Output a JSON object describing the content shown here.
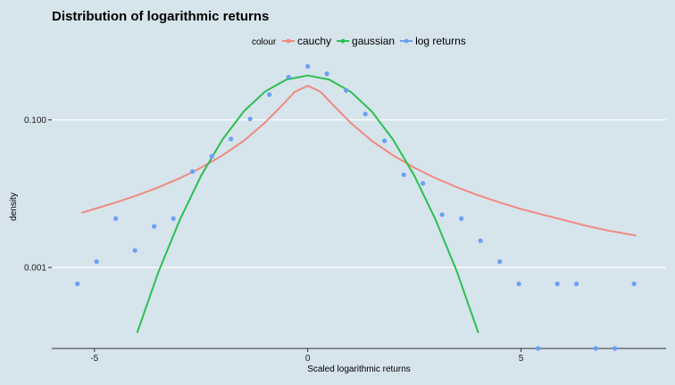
{
  "chart_data": {
    "type": "line",
    "title": "Distribution of logarithmic returns",
    "xlabel": "Scaled logarithmic returns",
    "ylabel": "density",
    "y_scale": "log10",
    "xlim": [
      -6,
      8.4
    ],
    "ylim": [
      8e-05,
      0.75
    ],
    "x_ticks": [
      -5,
      0,
      5
    ],
    "x_tick_labels": [
      "-5",
      "0",
      "5"
    ],
    "y_ticks": [
      0.001,
      0.1
    ],
    "y_tick_labels": [
      "0.001",
      "0.100"
    ],
    "grid": true,
    "legend": {
      "title": "colour",
      "placement": "top",
      "entries": [
        {
          "label": "cauchy",
          "color": "#f08a80"
        },
        {
          "label": "gaussian",
          "color": "#2bbf4f"
        },
        {
          "label": "log returns",
          "color": "#6a9ff5"
        }
      ]
    },
    "series": [
      {
        "name": "cauchy",
        "kind": "line",
        "color": "#f08a80",
        "x": [
          -5.3,
          -5.0,
          -4.5,
          -4.0,
          -3.5,
          -3.0,
          -2.5,
          -2.0,
          -1.5,
          -1.0,
          -0.6,
          -0.3,
          0.0,
          0.3,
          0.6,
          1.0,
          1.5,
          2.0,
          2.5,
          3.0,
          3.5,
          4.0,
          4.5,
          5.0,
          5.5,
          6.0,
          6.5,
          7.0,
          7.7
        ],
        "y": [
          0.0055,
          0.0062,
          0.0076,
          0.0095,
          0.0122,
          0.0162,
          0.0225,
          0.033,
          0.052,
          0.092,
          0.158,
          0.24,
          0.29,
          0.24,
          0.158,
          0.092,
          0.052,
          0.033,
          0.0225,
          0.0162,
          0.0122,
          0.0095,
          0.0076,
          0.0062,
          0.0052,
          0.0044,
          0.0037,
          0.0032,
          0.0027
        ]
      },
      {
        "name": "gaussian",
        "kind": "line",
        "color": "#2bbf4f",
        "x": [
          -4.0,
          -3.5,
          -3.0,
          -2.5,
          -2.0,
          -1.5,
          -1.0,
          -0.5,
          0.0,
          0.5,
          1.0,
          1.5,
          2.0,
          2.5,
          3.0,
          3.5,
          4.0
        ],
        "y": [
          0.00013,
          0.00087,
          0.0044,
          0.0175,
          0.054,
          0.13,
          0.242,
          0.352,
          0.399,
          0.352,
          0.242,
          0.13,
          0.054,
          0.0175,
          0.0044,
          0.00087,
          0.00013
        ]
      },
      {
        "name": "log returns",
        "kind": "scatter",
        "color": "#6a9ff5",
        "x": [
          -5.4,
          -4.95,
          -4.5,
          -4.05,
          -3.6,
          -3.15,
          -2.7,
          -2.25,
          -1.8,
          -1.35,
          -0.9,
          -0.45,
          0.0,
          0.45,
          0.9,
          1.35,
          1.8,
          2.25,
          2.7,
          3.15,
          3.6,
          4.05,
          4.5,
          4.95,
          5.4,
          5.85,
          6.3,
          6.75,
          7.2,
          7.65
        ],
        "y": [
          0.0006,
          0.0012,
          0.0046,
          0.0017,
          0.0036,
          0.0046,
          0.02,
          0.032,
          0.055,
          0.103,
          0.22,
          0.38,
          0.53,
          0.42,
          0.25,
          0.12,
          0.052,
          0.018,
          0.0138,
          0.0052,
          0.0046,
          0.0023,
          0.0012,
          0.0006,
          8e-05,
          0.0006,
          0.0006,
          8e-05,
          8e-05,
          0.0006
        ]
      }
    ]
  }
}
